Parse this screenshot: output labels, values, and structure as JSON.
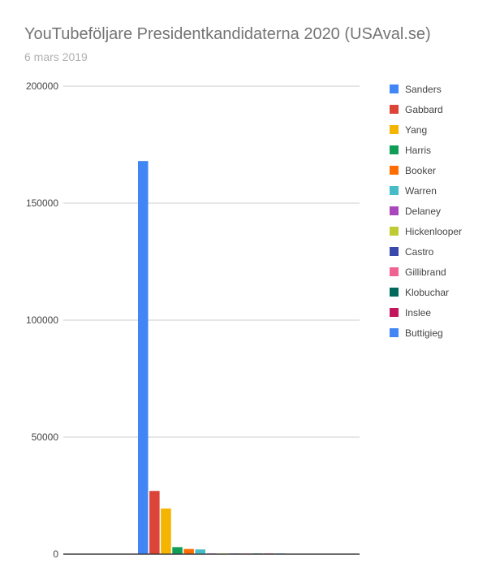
{
  "title": "YouTubeföljare Presidentkandidaterna 2020 (USAval.se)",
  "subtitle": "6 mars 2019",
  "chart_data": {
    "type": "bar",
    "title": "YouTubeföljare Presidentkandidaterna 2020 (USAval.se)",
    "subtitle": "6 mars 2019",
    "xlabel": "",
    "ylabel": "",
    "ylim": [
      0,
      200000
    ],
    "yticks": [
      "0",
      "50000",
      "100000",
      "150000",
      "200000"
    ],
    "grid": true,
    "legend_position": "right",
    "categories": [
      ""
    ],
    "series": [
      {
        "name": "Sanders",
        "values": [
          168000
        ],
        "color": "#4285f4"
      },
      {
        "name": "Gabbard",
        "values": [
          27000
        ],
        "color": "#db4437"
      },
      {
        "name": "Yang",
        "values": [
          19500
        ],
        "color": "#f4b400"
      },
      {
        "name": "Harris",
        "values": [
          3000
        ],
        "color": "#0f9d58"
      },
      {
        "name": "Booker",
        "values": [
          2200
        ],
        "color": "#ff6d00"
      },
      {
        "name": "Warren",
        "values": [
          2000
        ],
        "color": "#46bdc6"
      },
      {
        "name": "Delaney",
        "values": [
          300
        ],
        "color": "#ab47bc"
      },
      {
        "name": "Hickenlooper",
        "values": [
          250
        ],
        "color": "#c0ca33"
      },
      {
        "name": "Castro",
        "values": [
          200
        ],
        "color": "#3949ab"
      },
      {
        "name": "Gillibrand",
        "values": [
          200
        ],
        "color": "#f06292"
      },
      {
        "name": "Klobuchar",
        "values": [
          150
        ],
        "color": "#00695c"
      },
      {
        "name": "Inslee",
        "values": [
          100
        ],
        "color": "#c2185b"
      },
      {
        "name": "Buttigieg",
        "values": [
          100
        ],
        "color": "#4285f4"
      }
    ]
  }
}
